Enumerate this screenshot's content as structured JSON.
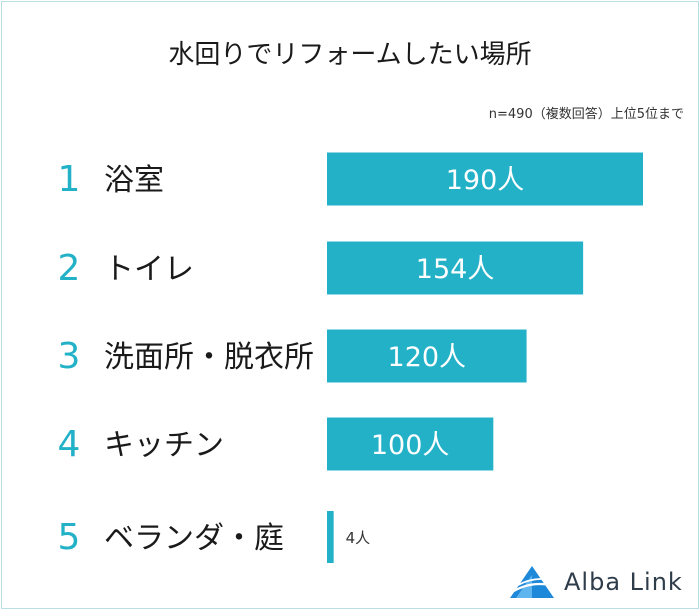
{
  "chart_data": {
    "type": "bar",
    "title": "水回りでリフォームしたい場所",
    "note": "n=490（複数回答）上位5位まで",
    "categories": [
      "浴室",
      "トイレ",
      "洗面所・脱衣所",
      "キッチン",
      "ベランダ・庭"
    ],
    "ranks": [
      "1",
      "2",
      "3",
      "4",
      "5"
    ],
    "values": [
      190,
      154,
      120,
      100,
      4
    ],
    "value_labels": [
      "190人",
      "154人",
      "120人",
      "100人",
      "4人"
    ],
    "xlim": [
      0,
      190
    ],
    "orientation": "horizontal",
    "bar_color": "#23b1c8",
    "rank_color": "#23b1c8",
    "grid": false
  },
  "brand": {
    "name": "Alba Link",
    "color": "#2f3d4a",
    "accent": "#1e88d9"
  }
}
